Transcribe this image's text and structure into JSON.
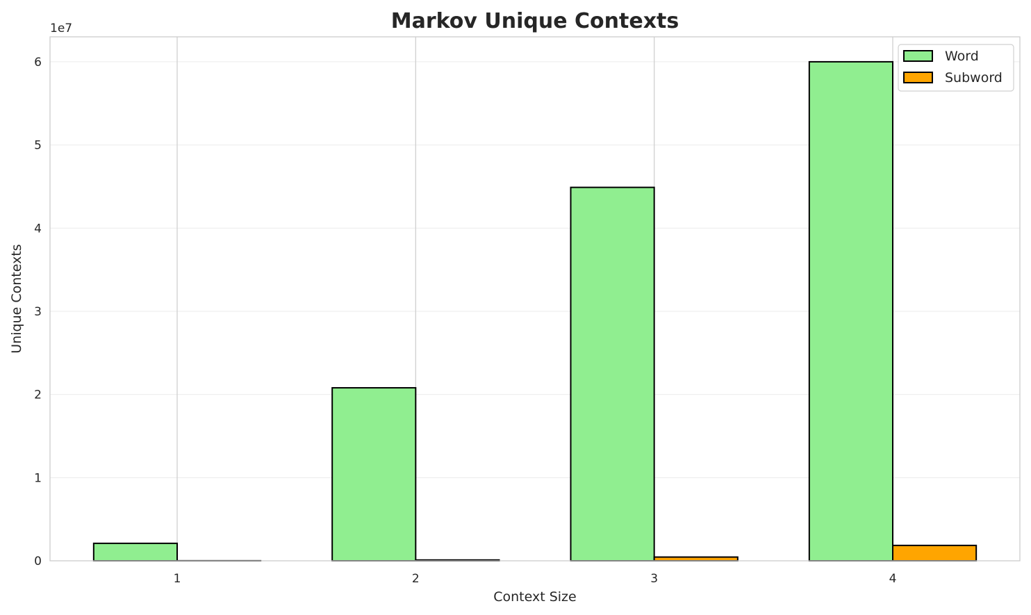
{
  "chart_data": {
    "type": "bar",
    "title": "Markov Unique Contexts",
    "xlabel": "Context Size",
    "ylabel": "Unique Contexts",
    "y_offset_label": "1e7",
    "categories": [
      "1",
      "2",
      "3",
      "4"
    ],
    "series": [
      {
        "name": "Word",
        "color": "#90EE90",
        "values": [
          2100000,
          20800000,
          44900000,
          60000000
        ]
      },
      {
        "name": "Subword",
        "color": "#FFA500",
        "values": [
          10000,
          100000,
          450000,
          1850000
        ]
      }
    ],
    "ylim": [
      0,
      63000000
    ],
    "yticks": [
      0,
      10000000,
      20000000,
      30000000,
      40000000,
      50000000,
      60000000
    ],
    "ytick_labels": [
      "0",
      "1",
      "2",
      "3",
      "4",
      "5",
      "6"
    ],
    "grid": true,
    "legend": "top-right"
  }
}
